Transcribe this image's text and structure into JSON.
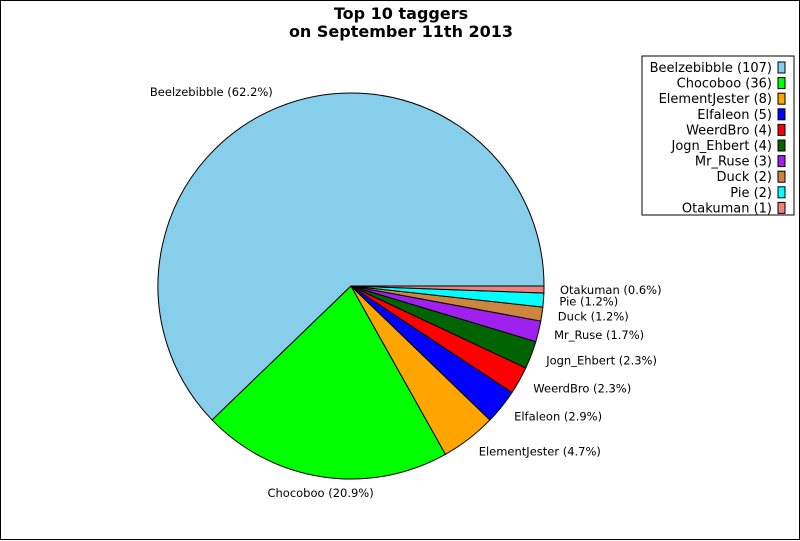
{
  "chart_data": {
    "type": "pie",
    "title": [
      "Top 10 taggers",
      "on September 11th 2013"
    ],
    "legend_position": "top-right",
    "slices": [
      {
        "name": "Beelzebibble",
        "count": 107,
        "percent": 62.2,
        "label": "Beelzebibble (62.2%)",
        "legend": "Beelzebibble (107)",
        "color": "#87CEEB"
      },
      {
        "name": "Chocoboo",
        "count": 36,
        "percent": 20.9,
        "label": "Chocoboo (20.9%)",
        "legend": "Chocoboo (36)",
        "color": "#00FF00"
      },
      {
        "name": "ElementJester",
        "count": 8,
        "percent": 4.7,
        "label": "ElementJester (4.7%)",
        "legend": "ElementJester (8)",
        "color": "#FFA500"
      },
      {
        "name": "Elfaleon",
        "count": 5,
        "percent": 2.9,
        "label": "Elfaleon (2.9%)",
        "legend": "Elfaleon (5)",
        "color": "#0000FF"
      },
      {
        "name": "WeerdBro",
        "count": 4,
        "percent": 2.3,
        "label": "WeerdBro (2.3%)",
        "legend": "WeerdBro (4)",
        "color": "#FF0000"
      },
      {
        "name": "Jogn_Ehbert",
        "count": 4,
        "percent": 2.3,
        "label": "Jogn_Ehbert (2.3%)",
        "legend": "Jogn_Ehbert (4)",
        "color": "#006400"
      },
      {
        "name": "Mr_Ruse",
        "count": 3,
        "percent": 1.7,
        "label": "Mr_Ruse (1.7%)",
        "legend": "Mr_Ruse (3)",
        "color": "#A020F0"
      },
      {
        "name": "Duck",
        "count": 2,
        "percent": 1.2,
        "label": "Duck (1.2%)",
        "legend": "Duck (2)",
        "color": "#CD853F"
      },
      {
        "name": "Pie",
        "count": 2,
        "percent": 1.2,
        "label": "Pie (1.2%)",
        "legend": "Pie (2)",
        "color": "#00FFFF"
      },
      {
        "name": "Otakuman",
        "count": 1,
        "percent": 0.6,
        "label": "Otakuman (0.6%)",
        "legend": "Otakuman (1)",
        "color": "#F08080"
      }
    ]
  }
}
